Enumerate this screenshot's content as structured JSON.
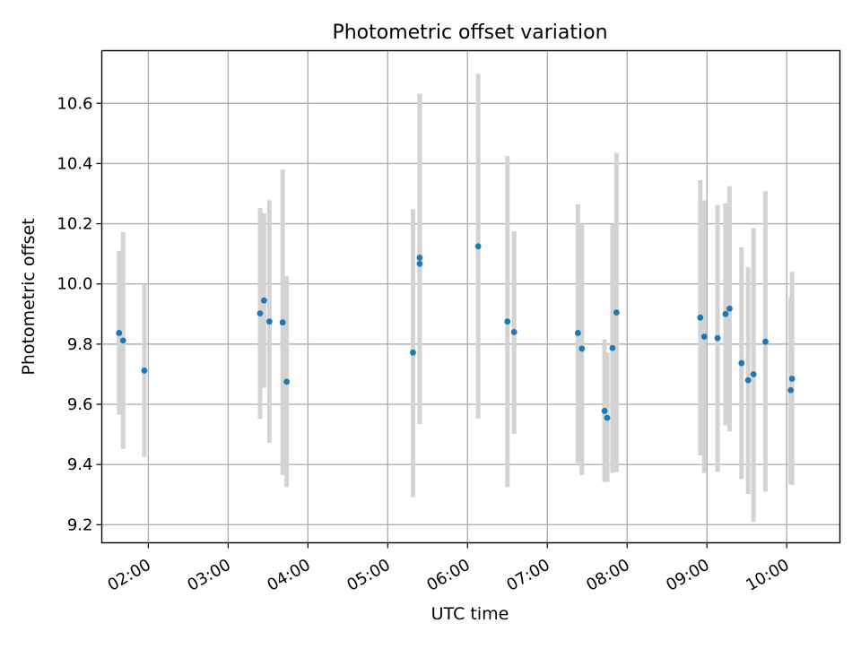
{
  "chart_data": {
    "type": "scatter",
    "title": "Photometric offset variation",
    "xlabel": "UTC time",
    "ylabel": "Photometric offset",
    "grid": true,
    "xlim": [
      "01:25",
      "10:40"
    ],
    "ylim": [
      9.14,
      10.775
    ],
    "x_ticks": [
      "02:00",
      "03:00",
      "04:00",
      "05:00",
      "06:00",
      "07:00",
      "08:00",
      "09:00",
      "10:00"
    ],
    "y_ticks": [
      "9.2",
      "9.4",
      "9.6",
      "9.8",
      "10.0",
      "10.2",
      "10.4",
      "10.6"
    ],
    "colors": {
      "point": "#1f77b4",
      "errorbar": "#d3d3d3",
      "grid": "#b0b0b0"
    },
    "points": [
      {
        "x": "01:38",
        "y": 9.837,
        "lo": 9.565,
        "hi": 10.11
      },
      {
        "x": "01:41",
        "y": 9.812,
        "lo": 9.452,
        "hi": 10.172
      },
      {
        "x": "01:57",
        "y": 9.712,
        "lo": 9.425,
        "hi": 10.0
      },
      {
        "x": "03:24",
        "y": 9.902,
        "lo": 9.552,
        "hi": 10.252
      },
      {
        "x": "03:27",
        "y": 9.945,
        "lo": 9.655,
        "hi": 10.235
      },
      {
        "x": "03:31",
        "y": 9.875,
        "lo": 9.472,
        "hi": 10.278
      },
      {
        "x": "03:41",
        "y": 9.872,
        "lo": 9.365,
        "hi": 10.38
      },
      {
        "x": "03:44",
        "y": 9.675,
        "lo": 9.325,
        "hi": 10.025
      },
      {
        "x": "05:19",
        "y": 9.772,
        "lo": 9.292,
        "hi": 10.248
      },
      {
        "x": "05:24",
        "y": 10.087,
        "lo": 9.535,
        "hi": 10.632
      },
      {
        "x": "05:24",
        "y": 10.067,
        "lo": 9.535,
        "hi": 10.632
      },
      {
        "x": "06:08",
        "y": 10.125,
        "lo": 9.552,
        "hi": 10.698
      },
      {
        "x": "06:30",
        "y": 9.875,
        "lo": 9.325,
        "hi": 10.425
      },
      {
        "x": "06:35",
        "y": 9.84,
        "lo": 9.502,
        "hi": 10.175
      },
      {
        "x": "07:23",
        "y": 9.837,
        "lo": 9.405,
        "hi": 10.265
      },
      {
        "x": "07:26",
        "y": 9.785,
        "lo": 9.365,
        "hi": 10.2
      },
      {
        "x": "07:43",
        "y": 9.578,
        "lo": 9.342,
        "hi": 9.815
      },
      {
        "x": "07:45",
        "y": 9.555,
        "lo": 9.342,
        "hi": 9.772
      },
      {
        "x": "07:49",
        "y": 9.787,
        "lo": 9.372,
        "hi": 10.2
      },
      {
        "x": "07:52",
        "y": 9.905,
        "lo": 9.375,
        "hi": 10.435
      },
      {
        "x": "08:55",
        "y": 9.888,
        "lo": 9.43,
        "hi": 10.345
      },
      {
        "x": "08:58",
        "y": 9.825,
        "lo": 9.372,
        "hi": 10.278
      },
      {
        "x": "09:08",
        "y": 9.82,
        "lo": 9.375,
        "hi": 10.262
      },
      {
        "x": "09:14",
        "y": 9.9,
        "lo": 9.53,
        "hi": 10.268
      },
      {
        "x": "09:17",
        "y": 9.918,
        "lo": 9.51,
        "hi": 10.325
      },
      {
        "x": "09:26",
        "y": 9.737,
        "lo": 9.352,
        "hi": 10.122
      },
      {
        "x": "09:31",
        "y": 9.68,
        "lo": 9.302,
        "hi": 10.055
      },
      {
        "x": "09:35",
        "y": 9.7,
        "lo": 9.21,
        "hi": 10.185
      },
      {
        "x": "09:44",
        "y": 9.808,
        "lo": 9.31,
        "hi": 10.308
      },
      {
        "x": "10:03",
        "y": 9.647,
        "lo": 9.335,
        "hi": 9.958
      },
      {
        "x": "10:04",
        "y": 9.685,
        "lo": 9.332,
        "hi": 10.04
      }
    ]
  }
}
